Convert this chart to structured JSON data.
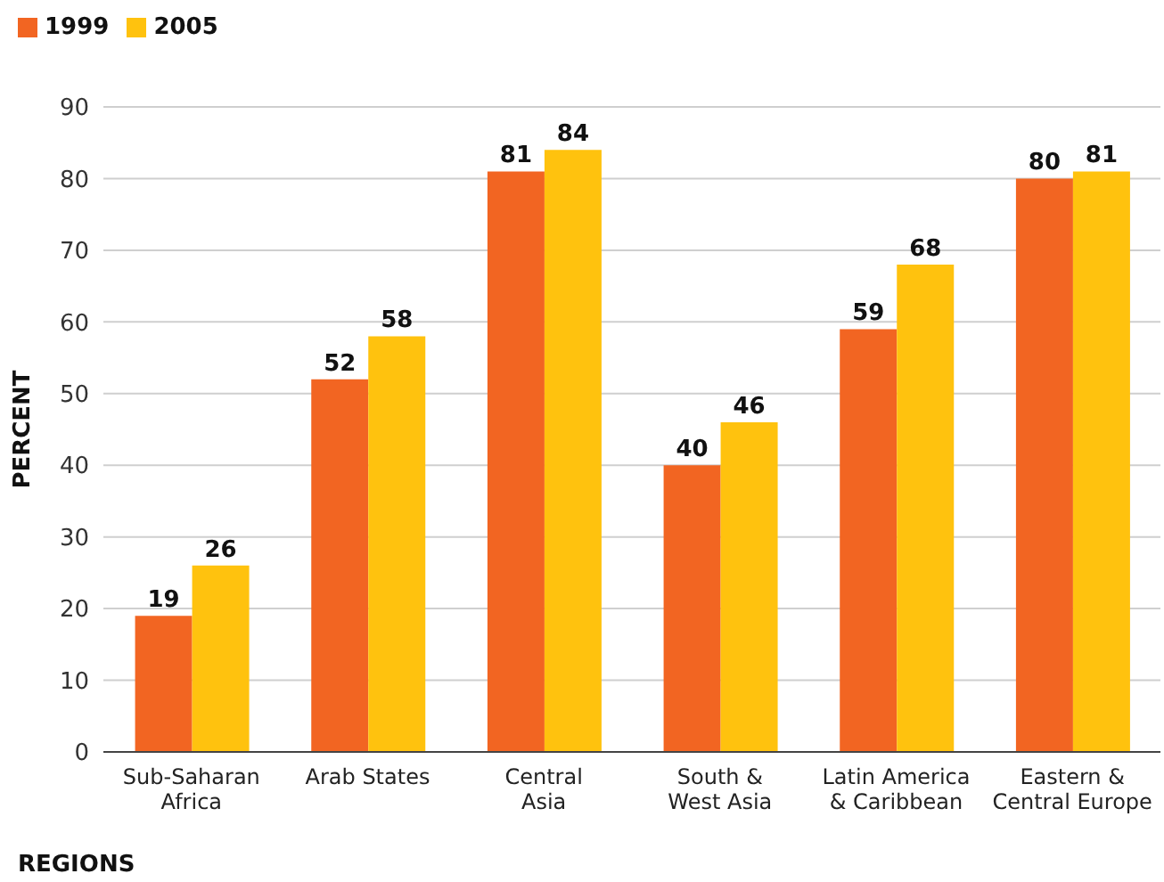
{
  "chart_data": {
    "type": "bar",
    "xlabel": "REGIONS",
    "ylabel": "PERCENT",
    "categories": [
      "Sub-Saharan\nAfrica",
      "Arab States",
      "Central\nAsia",
      "South &\nWest Asia",
      "Latin America\n& Caribbean",
      "Eastern &\nCentral Europe"
    ],
    "series": [
      {
        "name": "1999",
        "color": "#f26522",
        "values": [
          19,
          52,
          81,
          40,
          59,
          80
        ]
      },
      {
        "name": "2005",
        "color": "#ffc20e",
        "values": [
          26,
          58,
          84,
          46,
          68,
          81
        ]
      }
    ],
    "ylim": [
      0,
      90
    ],
    "yticks": [
      0,
      10,
      20,
      30,
      40,
      50,
      60,
      70,
      80,
      90
    ],
    "grid": "y",
    "legend": "top left",
    "data_labels": true
  }
}
